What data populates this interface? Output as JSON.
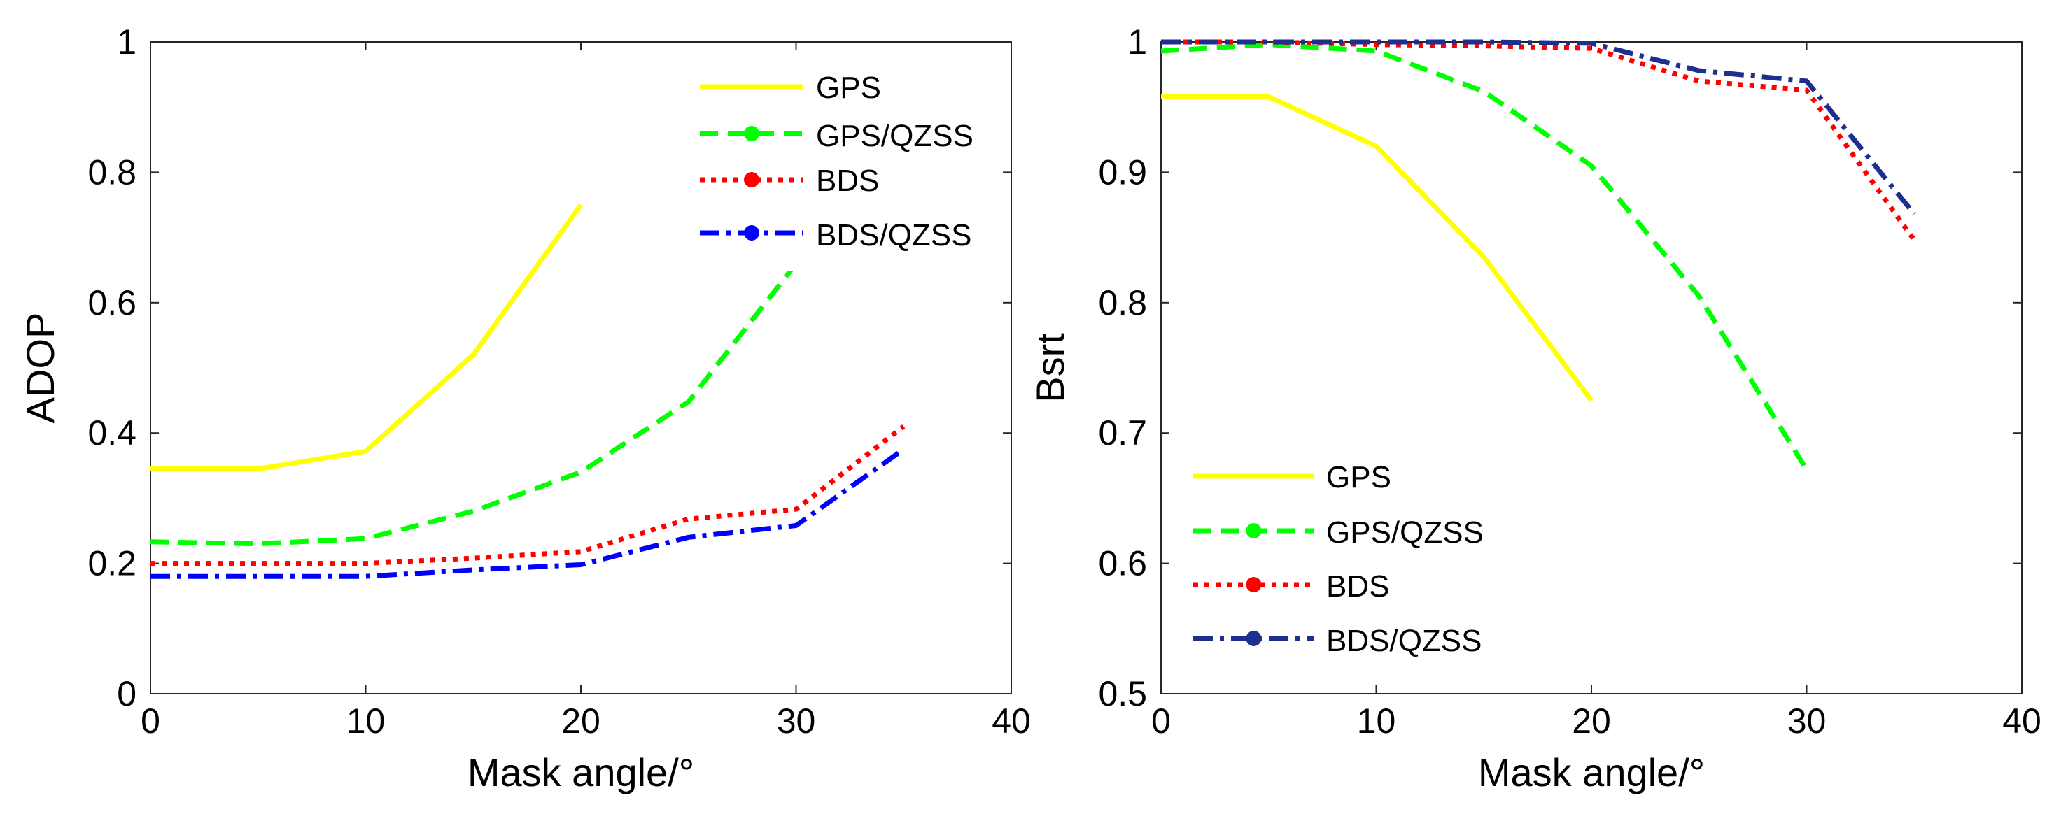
{
  "chart_data": [
    {
      "id": "left",
      "type": "line",
      "title": "",
      "xlabel": "Mask angle/°",
      "ylabel": "ADOP",
      "xlim": [
        0,
        40
      ],
      "ylim": [
        0,
        1
      ],
      "xticks": [
        0,
        10,
        20,
        30,
        40
      ],
      "yticks": [
        0,
        0.2,
        0.4,
        0.6,
        0.8,
        1
      ],
      "xtick_labels": [
        "0",
        "10",
        "20",
        "30",
        "40"
      ],
      "ytick_labels": [
        "0",
        "0.2",
        "0.4",
        "0.6",
        "0.8",
        "1"
      ],
      "legend_position": "top-right",
      "series": [
        {
          "name": "GPS",
          "style": "solid",
          "color": "#FFFF00",
          "marker": false,
          "x": [
            0,
            5,
            10,
            15,
            20
          ],
          "y": [
            0.345,
            0.345,
            0.372,
            0.52,
            0.75
          ]
        },
        {
          "name": "GPS/QZSS",
          "style": "dashed",
          "color": "#00FF00",
          "marker": true,
          "x": [
            0,
            5,
            10,
            15,
            20,
            25,
            30
          ],
          "y": [
            0.233,
            0.23,
            0.238,
            0.28,
            0.34,
            0.448,
            0.66
          ]
        },
        {
          "name": "BDS",
          "style": "dotted",
          "color": "#FF0000",
          "marker": true,
          "x": [
            0,
            5,
            10,
            15,
            20,
            25,
            30,
            35
          ],
          "y": [
            0.2,
            0.2,
            0.2,
            0.208,
            0.218,
            0.268,
            0.283,
            0.41
          ]
        },
        {
          "name": "BDS/QZSS",
          "style": "dashdot",
          "color": "#0000FF",
          "marker": true,
          "x": [
            0,
            5,
            10,
            15,
            20,
            25,
            30,
            35
          ],
          "y": [
            0.18,
            0.18,
            0.18,
            0.19,
            0.198,
            0.24,
            0.258,
            0.375
          ]
        }
      ]
    },
    {
      "id": "right",
      "type": "line",
      "title": "",
      "xlabel": "Mask angle/°",
      "ylabel": "Bsrt",
      "xlim": [
        0,
        40
      ],
      "ylim": [
        0.5,
        1
      ],
      "xticks": [
        0,
        10,
        20,
        30,
        40
      ],
      "yticks": [
        0.5,
        0.6,
        0.7,
        0.8,
        0.9,
        1
      ],
      "xtick_labels": [
        "0",
        "10",
        "20",
        "30",
        "40"
      ],
      "ytick_labels": [
        "0.5",
        "0.6",
        "0.7",
        "0.8",
        "0.9",
        "1"
      ],
      "legend_position": "bottom-left",
      "series": [
        {
          "name": "GPS",
          "style": "solid",
          "color": "#FFFF00",
          "marker": false,
          "x": [
            0,
            5,
            10,
            15,
            20
          ],
          "y": [
            0.958,
            0.958,
            0.92,
            0.835,
            0.725
          ]
        },
        {
          "name": "GPS/QZSS",
          "style": "dashed",
          "color": "#00FF00",
          "marker": true,
          "x": [
            0,
            5,
            10,
            15,
            20,
            25,
            30
          ],
          "y": [
            0.993,
            0.998,
            0.993,
            0.962,
            0.905,
            0.805,
            0.672
          ]
        },
        {
          "name": "BDS",
          "style": "dotted",
          "color": "#FF0000",
          "marker": true,
          "x": [
            0,
            5,
            10,
            15,
            20,
            25,
            30,
            35
          ],
          "y": [
            1.0,
            1.0,
            0.998,
            0.997,
            0.995,
            0.97,
            0.963,
            0.848
          ]
        },
        {
          "name": "BDS/QZSS",
          "style": "dashdot",
          "color": "#1F2F8F",
          "marker": true,
          "x": [
            0,
            5,
            10,
            15,
            20,
            25,
            30,
            35
          ],
          "y": [
            1.0,
            1.0,
            1.0,
            1.0,
            0.999,
            0.978,
            0.97,
            0.868
          ]
        }
      ]
    }
  ]
}
